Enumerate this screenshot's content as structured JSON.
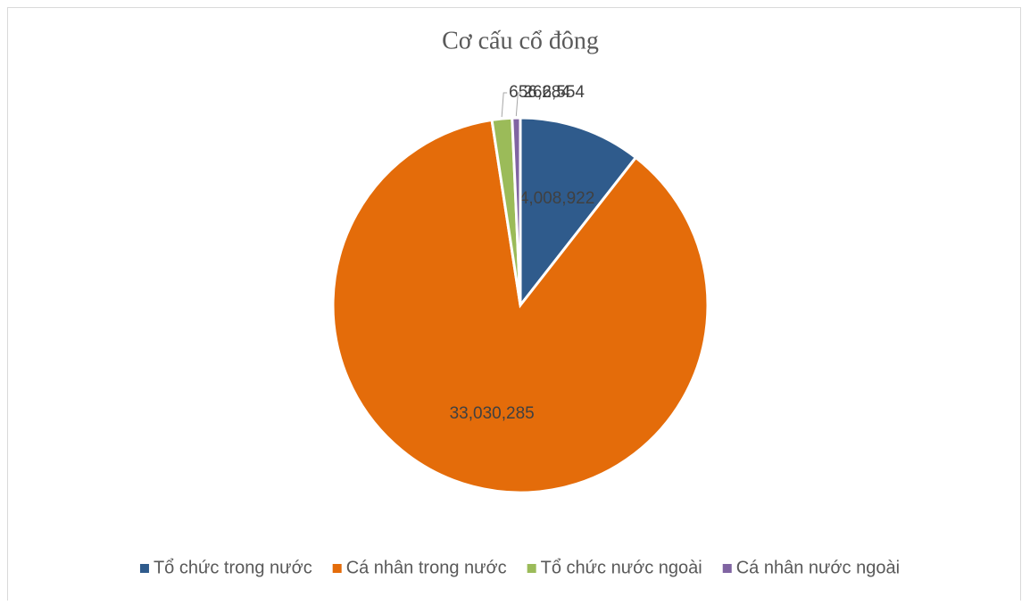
{
  "chart_data": {
    "type": "pie",
    "title": "Cơ cấu cổ đông",
    "categories": [
      "Tổ chức trong nước",
      "Cá nhân trong nước",
      "Tổ chức nước ngoài",
      "Cá nhân nước ngoài"
    ],
    "values": [
      4008922,
      33030285,
      656284,
      266554
    ],
    "value_labels": [
      "4,008,922",
      "33,030,285",
      "656,284",
      "266,554"
    ],
    "colors": [
      "#2f5b8c",
      "#e46c0a",
      "#9bbb59",
      "#8064a2"
    ],
    "legend": "bottom"
  }
}
